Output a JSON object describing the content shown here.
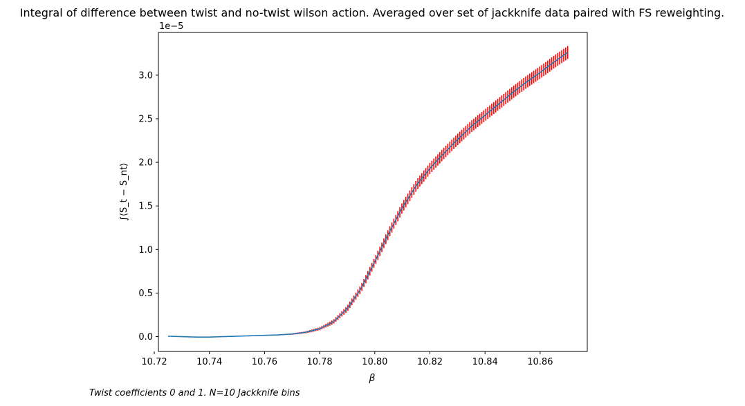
{
  "chart_data": {
    "type": "line",
    "title": "Integral of difference between twist and no-twist wilson action. Averaged over set of jackknife data paired with FS reweighting.",
    "xlabel": "β",
    "ylabel": "∫⟨S_t − S_nt⟩",
    "y_offset_text": "1e−5",
    "xlim": [
      10.7215,
      10.8771
    ],
    "ylim": [
      -0.17,
      3.49
    ],
    "x_ticks": [
      10.72,
      10.74,
      10.76,
      10.78,
      10.8,
      10.82,
      10.84,
      10.86
    ],
    "x_tick_labels": [
      "10.72",
      "10.74",
      "10.76",
      "10.78",
      "10.80",
      "10.82",
      "10.84",
      "10.86"
    ],
    "y_ticks": [
      0.0,
      0.5,
      1.0,
      1.5,
      2.0,
      2.5,
      3.0
    ],
    "y_tick_labels": [
      "0.0",
      "0.5",
      "1.0",
      "1.5",
      "2.0",
      "2.5",
      "3.0"
    ],
    "grid": false,
    "line_color": "#1f77b4",
    "errorbar_color": "#ff0000",
    "series": [
      {
        "x": [
          10.725,
          10.73,
          10.735,
          10.74,
          10.745,
          10.75,
          10.755,
          10.76,
          10.765,
          10.77,
          10.775,
          10.78,
          10.785,
          10.79,
          10.795,
          10.8,
          10.805,
          10.81,
          10.815,
          10.82,
          10.825,
          10.83,
          10.835,
          10.84,
          10.845,
          10.85,
          10.855,
          10.86,
          10.865,
          10.87
        ],
        "y": [
          0.005,
          0.0,
          -0.005,
          -0.005,
          0.0,
          0.005,
          0.01,
          0.015,
          0.02,
          0.03,
          0.05,
          0.09,
          0.17,
          0.32,
          0.55,
          0.86,
          1.18,
          1.48,
          1.73,
          1.93,
          2.1,
          2.26,
          2.41,
          2.54,
          2.67,
          2.8,
          2.92,
          3.03,
          3.15,
          3.26
        ],
        "err": [
          0.0,
          0.0,
          0.0,
          0.0,
          0.0,
          0.0,
          0.002,
          0.003,
          0.005,
          0.008,
          0.012,
          0.018,
          0.025,
          0.035,
          0.045,
          0.052,
          0.057,
          0.06,
          0.062,
          0.064,
          0.065,
          0.066,
          0.067,
          0.068,
          0.069,
          0.07,
          0.071,
          0.072,
          0.073,
          0.074
        ]
      }
    ]
  },
  "footnote": "Twist coefficients 0 and 1. N=10 Jackknife bins"
}
